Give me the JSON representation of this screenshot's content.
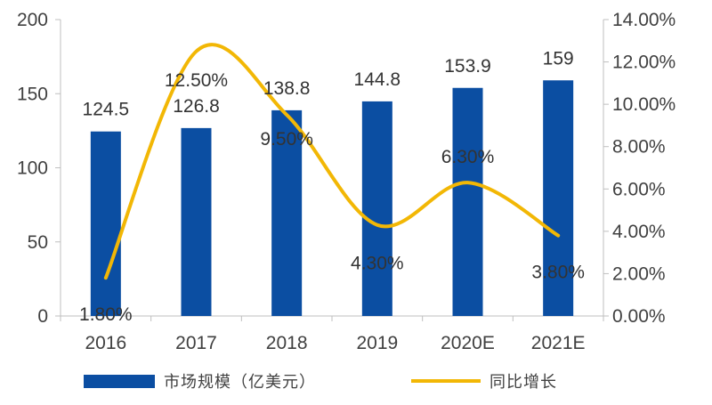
{
  "chart_data": {
    "type": "bar",
    "categories": [
      "2016",
      "2017",
      "2018",
      "2019",
      "2020E",
      "2021E"
    ],
    "series": [
      {
        "name": "市场规模（亿美元）",
        "kind": "bar",
        "axis": "left",
        "values": [
          124.5,
          126.8,
          138.8,
          144.8,
          153.9,
          159
        ],
        "value_labels": [
          "124.5",
          "126.8",
          "138.8",
          "144.8",
          "153.9",
          "159"
        ],
        "color": "#0B4EA2"
      },
      {
        "name": "同比增长",
        "kind": "line",
        "axis": "right",
        "smooth": true,
        "values": [
          1.8,
          12.5,
          9.5,
          4.3,
          6.3,
          3.8
        ],
        "value_labels": [
          "1.80%",
          "12.50%",
          "9.50%",
          "4.30%",
          "6.30%",
          "3.80%"
        ],
        "color": "#F2B705"
      }
    ],
    "y_left": {
      "ylim": [
        0,
        200
      ],
      "ticks": [
        "0",
        "50",
        "100",
        "150",
        "200"
      ]
    },
    "y_right": {
      "ylim": [
        0,
        14
      ],
      "ticks": [
        "0.00%",
        "2.00%",
        "4.00%",
        "6.00%",
        "8.00%",
        "10.00%",
        "12.00%",
        "14.00%"
      ]
    },
    "title": "",
    "xlabel": "",
    "ylabel": "",
    "grid": false,
    "legend": {
      "position": "bottom"
    }
  }
}
